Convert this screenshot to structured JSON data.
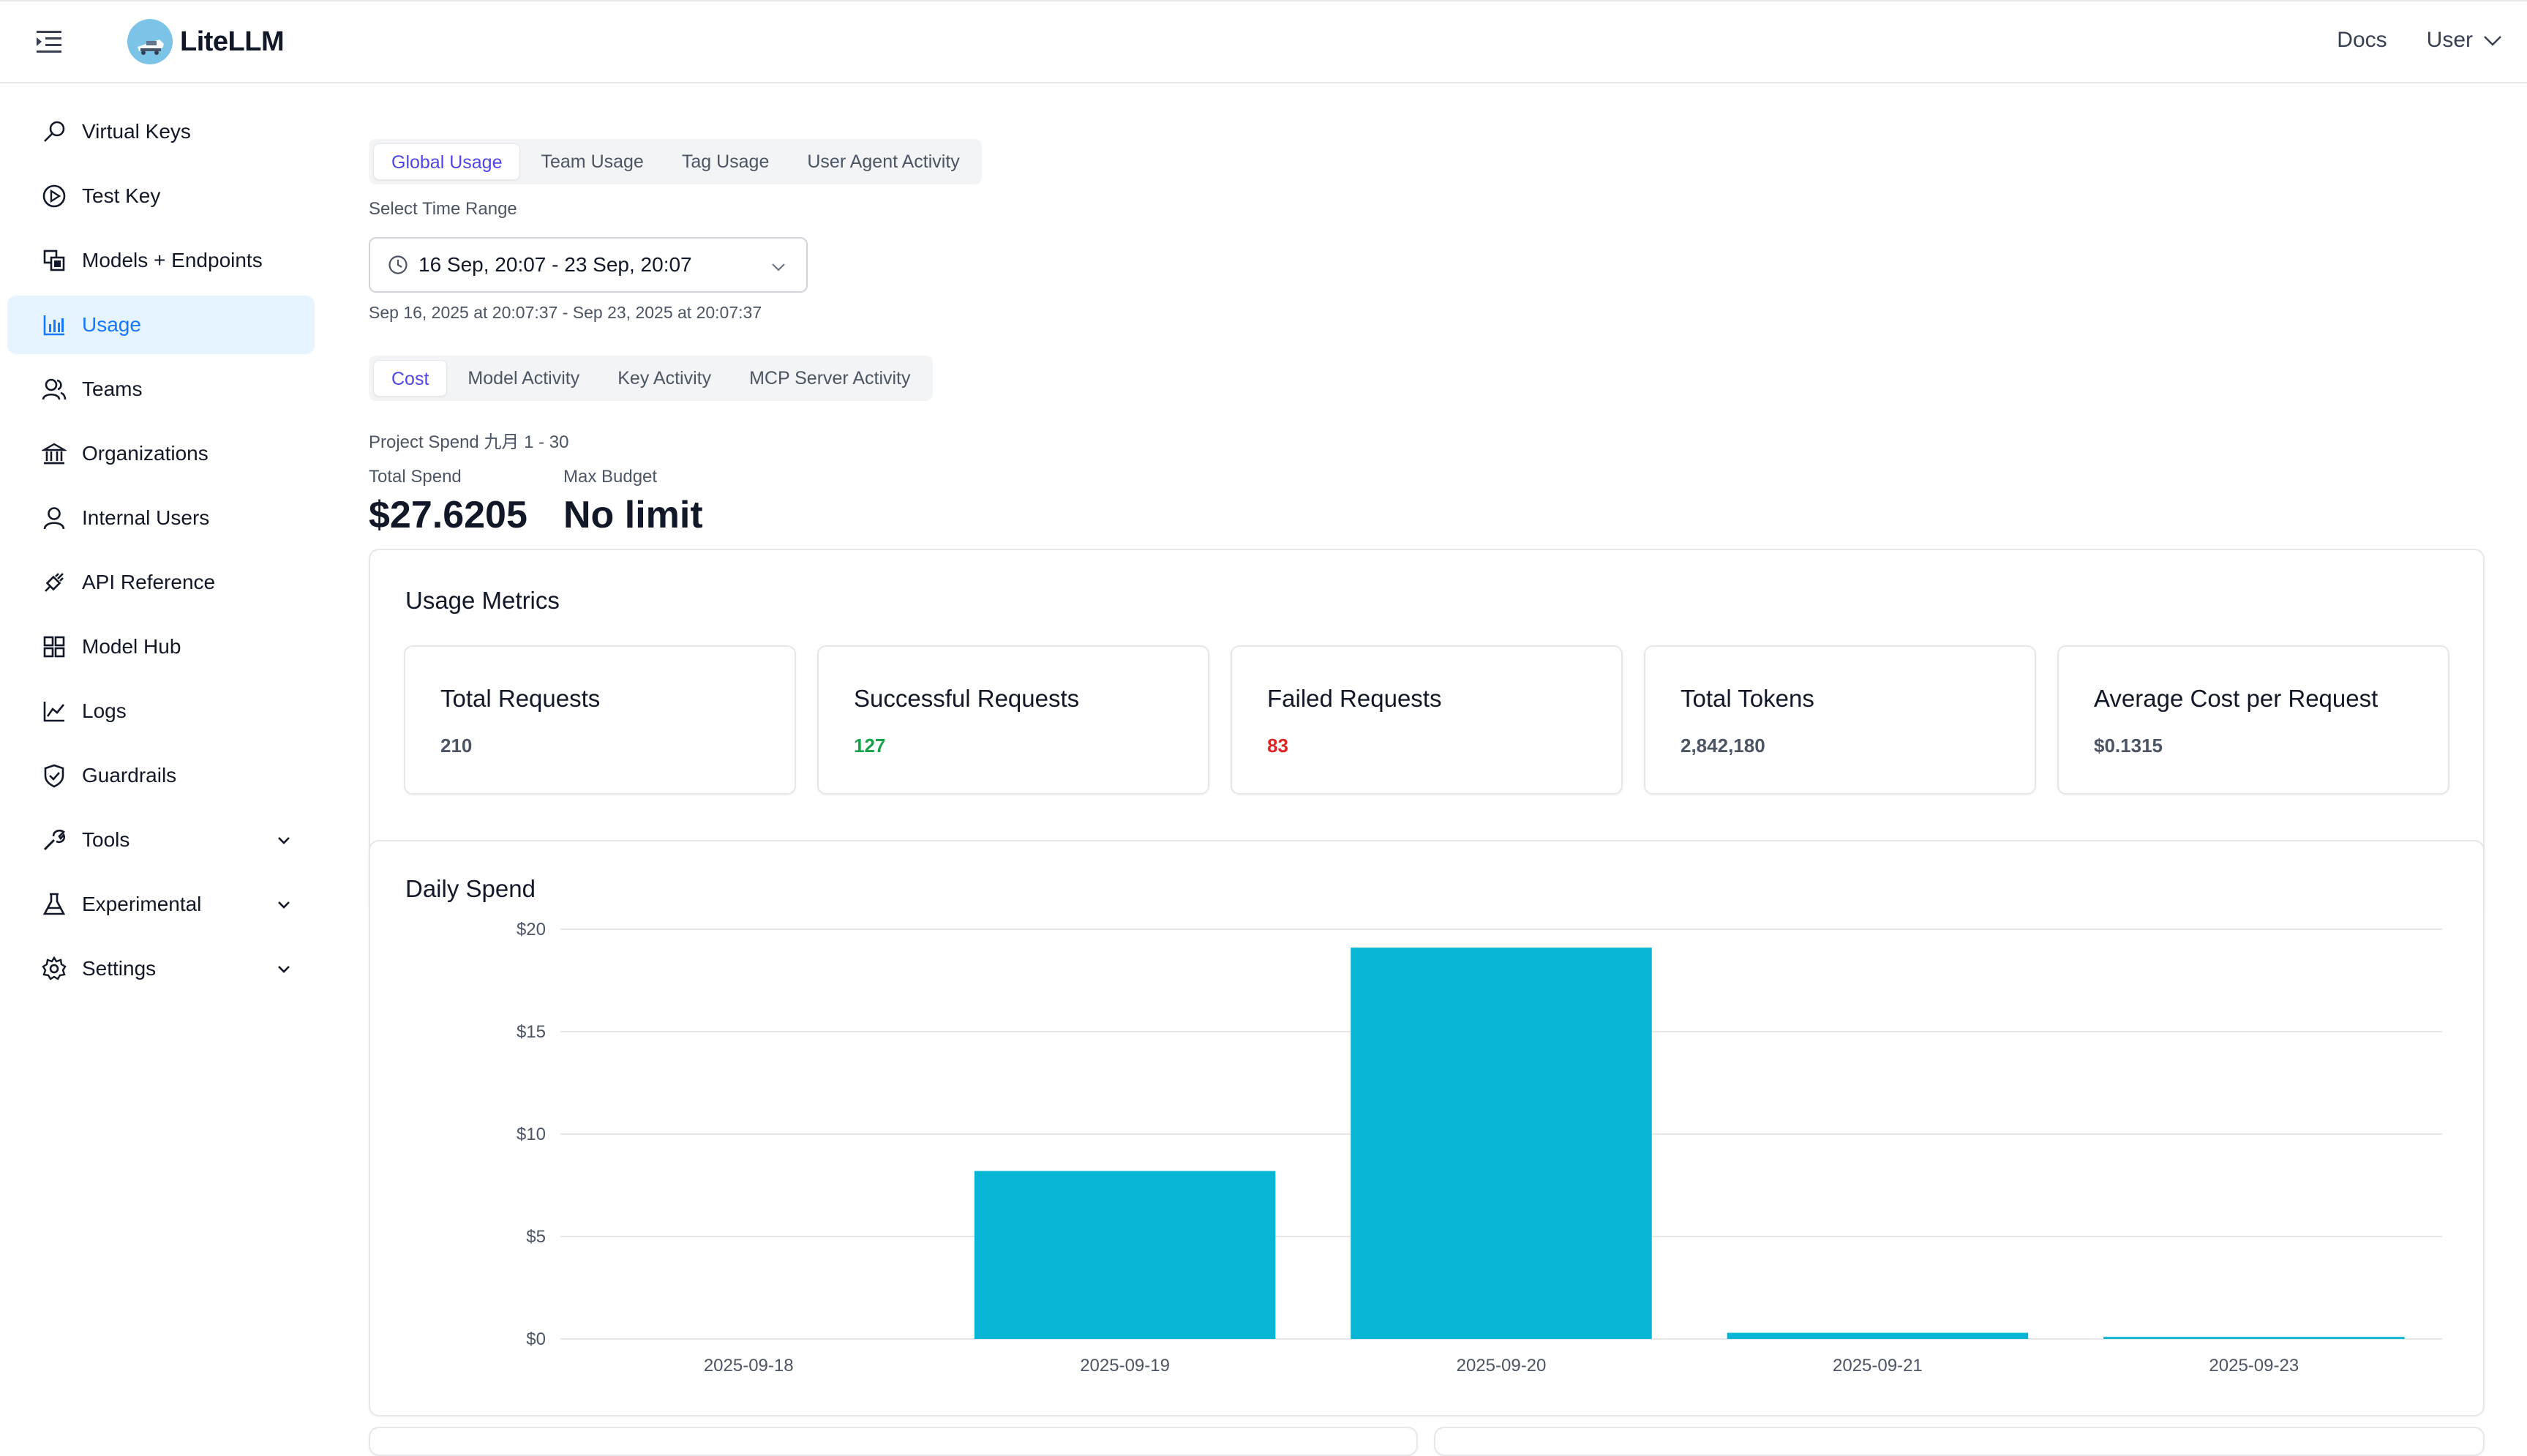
{
  "header": {
    "logo_text": "LiteLLM",
    "docs_label": "Docs",
    "user_label": "User"
  },
  "sidebar": {
    "items": [
      {
        "label": "Virtual Keys",
        "icon": "key-icon"
      },
      {
        "label": "Test Key",
        "icon": "play-circle-icon"
      },
      {
        "label": "Models + Endpoints",
        "icon": "block-icon"
      },
      {
        "label": "Usage",
        "icon": "bar-chart-icon",
        "active": true
      },
      {
        "label": "Teams",
        "icon": "team-icon"
      },
      {
        "label": "Organizations",
        "icon": "bank-icon"
      },
      {
        "label": "Internal Users",
        "icon": "user-icon"
      },
      {
        "label": "API Reference",
        "icon": "api-icon"
      },
      {
        "label": "Model Hub",
        "icon": "appstore-icon"
      },
      {
        "label": "Logs",
        "icon": "line-chart-icon"
      },
      {
        "label": "Guardrails",
        "icon": "safety-icon"
      },
      {
        "label": "Tools",
        "icon": "tool-icon",
        "expandable": true
      },
      {
        "label": "Experimental",
        "icon": "experiment-icon",
        "expandable": true
      },
      {
        "label": "Settings",
        "icon": "setting-icon",
        "expandable": true
      }
    ]
  },
  "usage_tabs": [
    "Global Usage",
    "Team Usage",
    "Tag Usage",
    "User Agent Activity"
  ],
  "time_range": {
    "label": "Select Time Range",
    "value": "16 Sep, 20:07 - 23 Sep, 20:07",
    "detail": "Sep 16, 2025 at 20:07:37 - Sep 23, 2025 at 20:07:37"
  },
  "sub_tabs": [
    "Cost",
    "Model Activity",
    "Key Activity",
    "MCP Server Activity"
  ],
  "project_spend": {
    "label": "Project Spend 九月 1 - 30",
    "total_spend_label": "Total Spend",
    "total_spend_value": "$27.6205",
    "max_budget_label": "Max Budget",
    "max_budget_value": "No limit"
  },
  "usage_metrics": {
    "title": "Usage Metrics",
    "cards": [
      {
        "title": "Total Requests",
        "value": "210",
        "color": "#4b5563"
      },
      {
        "title": "Successful Requests",
        "value": "127",
        "color": "#16a34a"
      },
      {
        "title": "Failed Requests",
        "value": "83",
        "color": "#dc2626"
      },
      {
        "title": "Total Tokens",
        "value": "2,842,180",
        "color": "#4b5563"
      },
      {
        "title": "Average Cost per Request",
        "value": "$0.1315",
        "color": "#4b5563"
      }
    ]
  },
  "colors": {
    "accent": "#1677ff",
    "tab_active": "#4f46e5",
    "bar": "#06b6d4"
  },
  "chart_data": {
    "type": "bar",
    "title": "Daily Spend",
    "xlabel": "",
    "ylabel": "",
    "categories": [
      "2025-09-18",
      "2025-09-19",
      "2025-09-20",
      "2025-09-21",
      "2025-09-23"
    ],
    "values": [
      0,
      8.2,
      19.1,
      0.3,
      0.1
    ],
    "ylim": [
      0,
      20
    ],
    "yticks": [
      "$0",
      "$5",
      "$10",
      "$15",
      "$20"
    ],
    "grid": true
  }
}
